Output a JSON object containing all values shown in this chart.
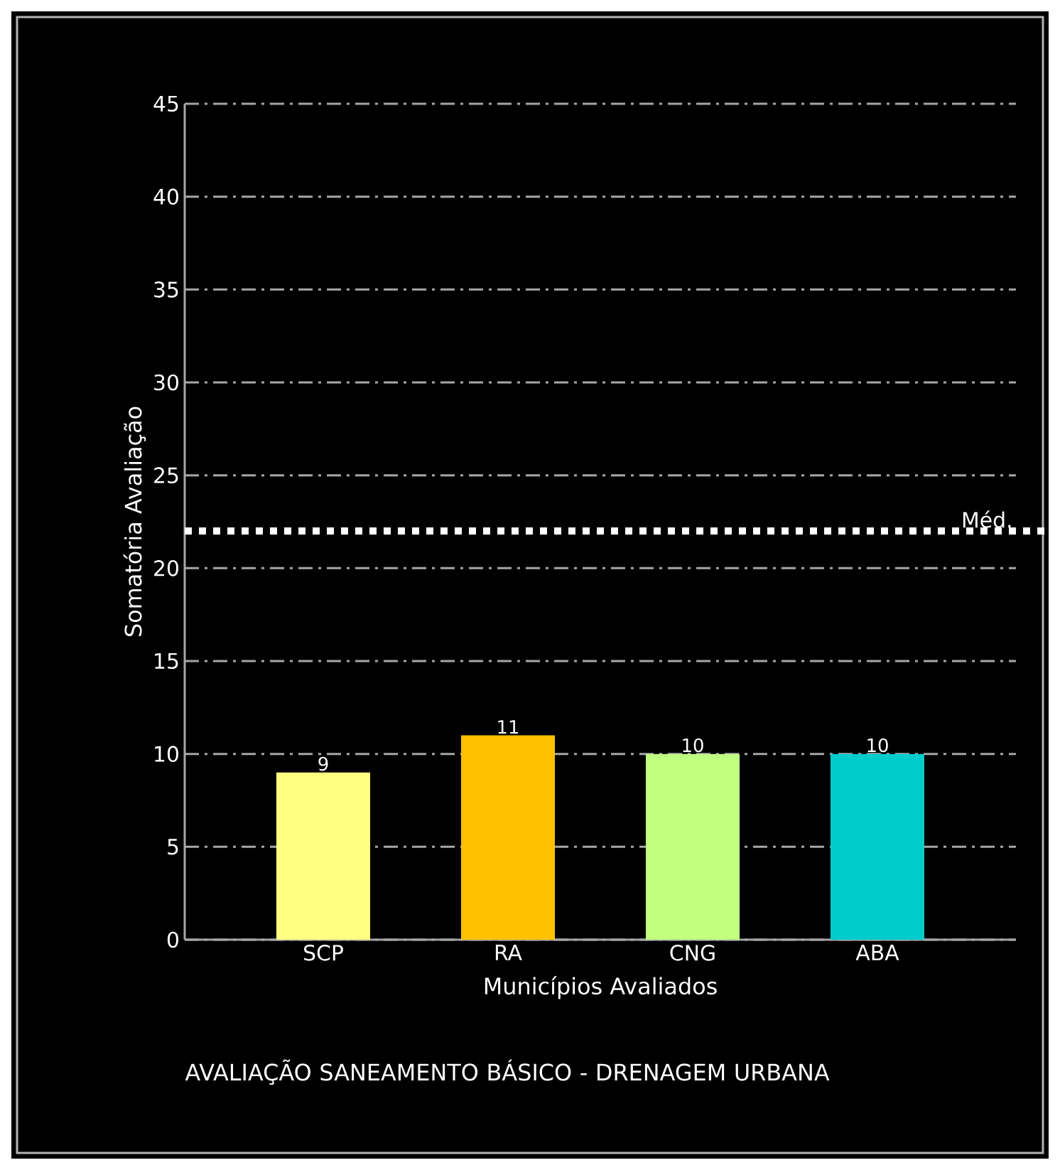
{
  "chart_data": {
    "type": "bar",
    "title": "AVALIAÇÃO SANEAMENTO BÁSICO - DRENAGEM URBANA",
    "xlabel": "Municípios Avaliados",
    "ylabel": "Somatória Avaliação",
    "categories": [
      "SCP",
      "RA",
      "CNG",
      "ABA"
    ],
    "values": [
      9,
      11,
      10,
      10
    ],
    "colors": [
      "#ffff80",
      "#ffc000",
      "#c0ff80",
      "#00cccc"
    ],
    "ylim": [
      0,
      45
    ],
    "yticks": [
      0,
      5,
      10,
      15,
      20,
      25,
      30,
      35,
      40,
      45
    ],
    "grid": "y",
    "data_labels": true,
    "ref_lines": [
      {
        "axis": "y",
        "value": 22,
        "label": "Méd.",
        "color": "#ffffff",
        "line_style": "dotted"
      }
    ]
  }
}
